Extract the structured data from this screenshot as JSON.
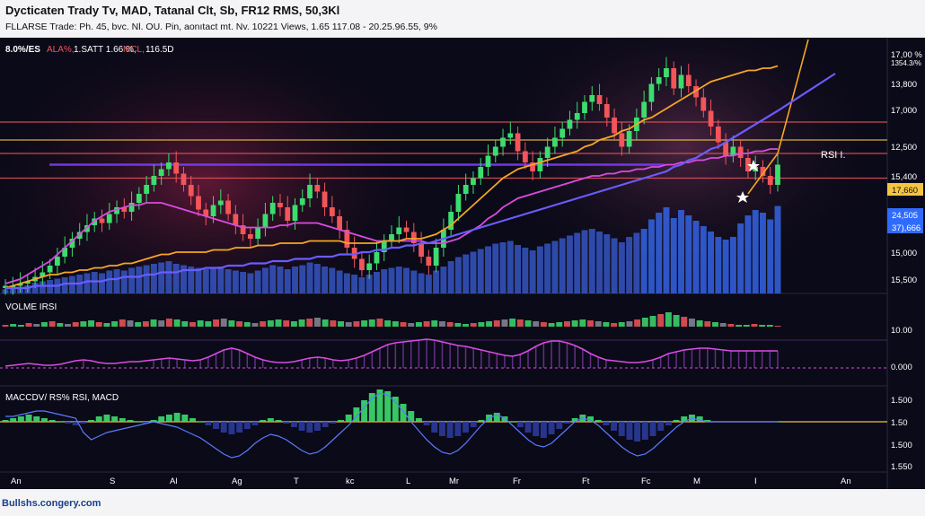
{
  "header": {
    "title": "Dycticaten Trady Tv, MAD, Tatanal Clt, Sb, FR12 RMS, 50,3Kl",
    "subtitle": "FLLARSE Trade: Ph. 45, bvc. Nl. OU. Pin, aonıtact mt. Nv. 10221 Views, 1.65 117.08 - 20.25.96.55, 9%"
  },
  "footer": {
    "watermark": "Bullshs.congery.com"
  },
  "colors": {
    "background": "#0b0a18",
    "up": "#3ddc6e",
    "down": "#f2555a",
    "volume": "#3b5fd8",
    "orange_line": "#f5a623",
    "blue_line": "#6a5cff",
    "magenta_line": "#d94ce0",
    "yellow_level": "#f0c040",
    "red_level": "#e0505a",
    "badge_yellow": "#f5c542",
    "badge_blue": "#2f6bff"
  },
  "chart_data": [
    {
      "type": "candlestick",
      "panel": "price",
      "legend": {
        "symbol": "8.0%/ES",
        "series_a": "ALA%,",
        "series_b": "1.SATT 1.66 %,",
        "series_c": "MCL,",
        "series_d": "116.5D"
      },
      "annotation": "RSI I.",
      "x_tick_labels": [
        "An",
        "S",
        "Al",
        "Ag",
        "T",
        "kc",
        "L",
        "Mr",
        "Fr",
        "Ft",
        "Fc",
        "M",
        "I",
        "An"
      ],
      "y_tick_labels": [
        "17,00 %",
        "1354.3/%",
        "13,800",
        "17,000",
        "12,500",
        "15,400",
        "15,000",
        "15,500"
      ],
      "price_badges": [
        "17,660",
        "24,505",
        "37),666"
      ],
      "horizontal_levels": [
        {
          "value": 74,
          "color": "red"
        },
        {
          "value": 66,
          "color": "yellow"
        },
        {
          "value": 60,
          "color": "red"
        },
        {
          "value": 49,
          "color": "red"
        },
        {
          "value": 55,
          "color": "purple"
        }
      ],
      "ylim": [
        0,
        100
      ],
      "closes": [
        1,
        1,
        2,
        3,
        5,
        7,
        10,
        14,
        18,
        22,
        25,
        28,
        31,
        29,
        33,
        36,
        34,
        38,
        42,
        46,
        50,
        53,
        56,
        51,
        46,
        41,
        35,
        32,
        37,
        39,
        33,
        28,
        24,
        22,
        27,
        33,
        38,
        36,
        30,
        37,
        40,
        46,
        43,
        36,
        32,
        26,
        18,
        13,
        8,
        11,
        16,
        21,
        24,
        27,
        25,
        20,
        14,
        10,
        18,
        26,
        34,
        42,
        46,
        49,
        54,
        59,
        63,
        67,
        69,
        61,
        56,
        52,
        58,
        63,
        67,
        71,
        75,
        78,
        83,
        86,
        82,
        76,
        69,
        63,
        70,
        76,
        83,
        91,
        94,
        98,
        89,
        95,
        90,
        85,
        79,
        72,
        65,
        59,
        63,
        58,
        52,
        54,
        50,
        46,
        55
      ],
      "ma_orange": [
        0,
        1,
        2,
        3,
        4,
        5,
        6,
        6,
        7,
        7,
        8,
        8,
        9,
        9,
        10,
        10,
        11,
        11,
        12,
        13,
        14,
        15,
        15,
        16,
        16,
        16,
        16,
        16,
        17,
        17,
        17,
        18,
        18,
        18,
        19,
        19,
        19,
        20,
        20,
        20,
        20,
        21,
        21,
        21,
        21,
        21,
        20,
        20,
        20,
        20,
        20,
        21,
        21,
        21,
        22,
        22,
        22,
        23,
        24,
        26,
        28,
        31,
        34,
        37,
        40,
        43,
        46,
        49,
        51,
        53,
        54,
        55,
        56,
        57,
        58,
        59,
        60,
        61,
        63,
        64,
        66,
        67,
        68,
        70,
        71,
        73,
        75,
        76,
        78,
        80,
        82,
        84,
        86,
        88,
        90,
        92,
        93,
        94,
        95,
        96,
        97,
        97,
        98,
        98,
        99
      ],
      "ma_blue": [
        0,
        0,
        0,
        0,
        1,
        1,
        1,
        1,
        2,
        2,
        2,
        3,
        3,
        3,
        4,
        4,
        5,
        5,
        5,
        6,
        6,
        7,
        7,
        7,
        8,
        8,
        8,
        9,
        9,
        9,
        10,
        10,
        10,
        11,
        11,
        11,
        12,
        12,
        12,
        13,
        13,
        13,
        14,
        14,
        14,
        15,
        15,
        15,
        16,
        16,
        17,
        17,
        18,
        18,
        19,
        19,
        20,
        20,
        21,
        22,
        23,
        24,
        25,
        26,
        27,
        28,
        29,
        30,
        31,
        32,
        33,
        34,
        35,
        36,
        37,
        38,
        39,
        40,
        41,
        42,
        43,
        44,
        45,
        46,
        47,
        48,
        49,
        50,
        51,
        52,
        54,
        55,
        57,
        58,
        60,
        62,
        63,
        65,
        67,
        69,
        71,
        73,
        75,
        77,
        79
      ],
      "ma_magenta": [
        2,
        3,
        4,
        6,
        8,
        10,
        12,
        15,
        18,
        21,
        24,
        27,
        30,
        32,
        34,
        35,
        36,
        37,
        37,
        38,
        38,
        38,
        37,
        36,
        35,
        34,
        33,
        32,
        31,
        30,
        29,
        28,
        27,
        27,
        27,
        27,
        27,
        28,
        28,
        29,
        29,
        29,
        29,
        28,
        27,
        26,
        25,
        24,
        23,
        22,
        21,
        21,
        21,
        21,
        21,
        21,
        21,
        20,
        20,
        20,
        21,
        22,
        24,
        26,
        28,
        31,
        33,
        36,
        38,
        40,
        41,
        42,
        43,
        44,
        45,
        46,
        47,
        48,
        49,
        50,
        50,
        51,
        51,
        52,
        52,
        53,
        53,
        54,
        54,
        55,
        55,
        56,
        56,
        57,
        57,
        58,
        58,
        59,
        59,
        60,
        60,
        61,
        61,
        62,
        62
      ],
      "volume": [
        3,
        4,
        5,
        6,
        8,
        9,
        10,
        11,
        12,
        13,
        14,
        15,
        16,
        15,
        17,
        18,
        17,
        19,
        20,
        21,
        22,
        23,
        24,
        22,
        21,
        20,
        19,
        18,
        19,
        20,
        18,
        17,
        16,
        15,
        17,
        19,
        21,
        20,
        18,
        20,
        21,
        23,
        22,
        20,
        19,
        17,
        15,
        14,
        12,
        14,
        16,
        18,
        19,
        20,
        19,
        17,
        15,
        14,
        17,
        20,
        24,
        27,
        29,
        31,
        33,
        35,
        37,
        38,
        39,
        36,
        34,
        32,
        35,
        37,
        39,
        41,
        43,
        45,
        47,
        48,
        46,
        44,
        41,
        38,
        42,
        45,
        48,
        55,
        60,
        64,
        56,
        62,
        58,
        54,
        50,
        46,
        42,
        40,
        42,
        52,
        58,
        62,
        60,
        55,
        65
      ]
    },
    {
      "type": "bar",
      "panel": "volume-rsi",
      "label": "VOLME IRSI",
      "y_tick_labels": [
        "10.00",
        "0.000"
      ],
      "bars": [
        2,
        3,
        2,
        4,
        3,
        5,
        6,
        4,
        3,
        5,
        6,
        7,
        5,
        4,
        6,
        8,
        7,
        5,
        6,
        8,
        7,
        9,
        8,
        6,
        5,
        7,
        6,
        8,
        9,
        7,
        6,
        5,
        4,
        6,
        7,
        8,
        7,
        6,
        8,
        9,
        10,
        8,
        7,
        6,
        5,
        6,
        7,
        8,
        9,
        7,
        6,
        5,
        4,
        5,
        6,
        7,
        6,
        5,
        4,
        3,
        4,
        5,
        6,
        7,
        8,
        9,
        8,
        7,
        6,
        5,
        4,
        5,
        6,
        7,
        8,
        7,
        6,
        5,
        4,
        5,
        6,
        8,
        10,
        12,
        14,
        16,
        13,
        11,
        9,
        7,
        6,
        5,
        4,
        3,
        2,
        2,
        3,
        2,
        2,
        1
      ],
      "line": [
        2,
        3,
        4,
        5,
        4,
        3,
        3,
        4,
        6,
        8,
        9,
        8,
        6,
        5,
        5,
        6,
        7,
        7,
        8,
        9,
        10,
        11,
        10,
        9,
        8,
        9,
        12,
        16,
        20,
        22,
        20,
        16,
        12,
        9,
        7,
        6,
        6,
        7,
        9,
        11,
        12,
        11,
        9,
        8,
        9,
        11,
        14,
        18,
        22,
        26,
        28,
        29,
        30,
        31,
        32,
        31,
        29,
        27,
        25,
        24,
        22,
        20,
        18,
        16,
        14,
        13,
        15,
        19,
        24,
        28,
        30,
        30,
        28,
        25,
        21,
        16,
        12,
        9,
        8,
        7,
        6,
        6,
        7,
        9,
        12,
        16,
        18,
        20,
        21,
        22,
        22,
        21,
        20,
        19,
        19,
        19,
        19,
        19,
        19,
        19
      ]
    },
    {
      "type": "bar",
      "panel": "macd",
      "label": "MACCDV/ RS% RSI, MACD",
      "y_tick_labels": [
        "1.500",
        "1.50",
        "1.500",
        "1.550"
      ],
      "histogram": [
        1,
        2,
        3,
        4,
        3,
        2,
        1,
        0,
        -1,
        -2,
        -1,
        1,
        3,
        4,
        3,
        2,
        1,
        0,
        -1,
        1,
        3,
        4,
        5,
        4,
        2,
        0,
        -2,
        -4,
        -6,
        -7,
        -6,
        -4,
        -2,
        1,
        2,
        1,
        -1,
        -3,
        -5,
        -6,
        -5,
        -3,
        -1,
        1,
        4,
        8,
        12,
        16,
        18,
        17,
        14,
        10,
        6,
        2,
        -2,
        -6,
        -8,
        -9,
        -8,
        -6,
        -3,
        1,
        4,
        5,
        3,
        0,
        -3,
        -6,
        -8,
        -9,
        -7,
        -4,
        -1,
        2,
        4,
        3,
        1,
        -2,
        -5,
        -8,
        -10,
        -11,
        -10,
        -8,
        -5,
        -2,
        1,
        3,
        4,
        3,
        1,
        0,
        0,
        0,
        0,
        0,
        0,
        0,
        0,
        0
      ],
      "signal": [
        3,
        3,
        4,
        5,
        6,
        6,
        5,
        4,
        3,
        2,
        -6,
        -10,
        -8,
        -6,
        -5,
        -4,
        -3,
        -2,
        -1,
        0,
        -1,
        -2,
        -3,
        -5,
        -7,
        -9,
        -12,
        -15,
        -18,
        -20,
        -19,
        -16,
        -12,
        -9,
        -7,
        -8,
        -10,
        -13,
        -16,
        -18,
        -17,
        -14,
        -10,
        -6,
        -2,
        3,
        8,
        13,
        16,
        15,
        11,
        6,
        0,
        -5,
        -10,
        -14,
        -17,
        -18,
        -16,
        -12,
        -7,
        -2,
        2,
        4,
        2,
        -2,
        -6,
        -10,
        -13,
        -14,
        -12,
        -8,
        -4,
        0,
        2,
        1,
        -2,
        -6,
        -10,
        -14,
        -17,
        -19,
        -18,
        -15,
        -11,
        -7,
        -3,
        0,
        2,
        1,
        0,
        0,
        0,
        0,
        0,
        0,
        0,
        0,
        0,
        0
      ]
    }
  ]
}
